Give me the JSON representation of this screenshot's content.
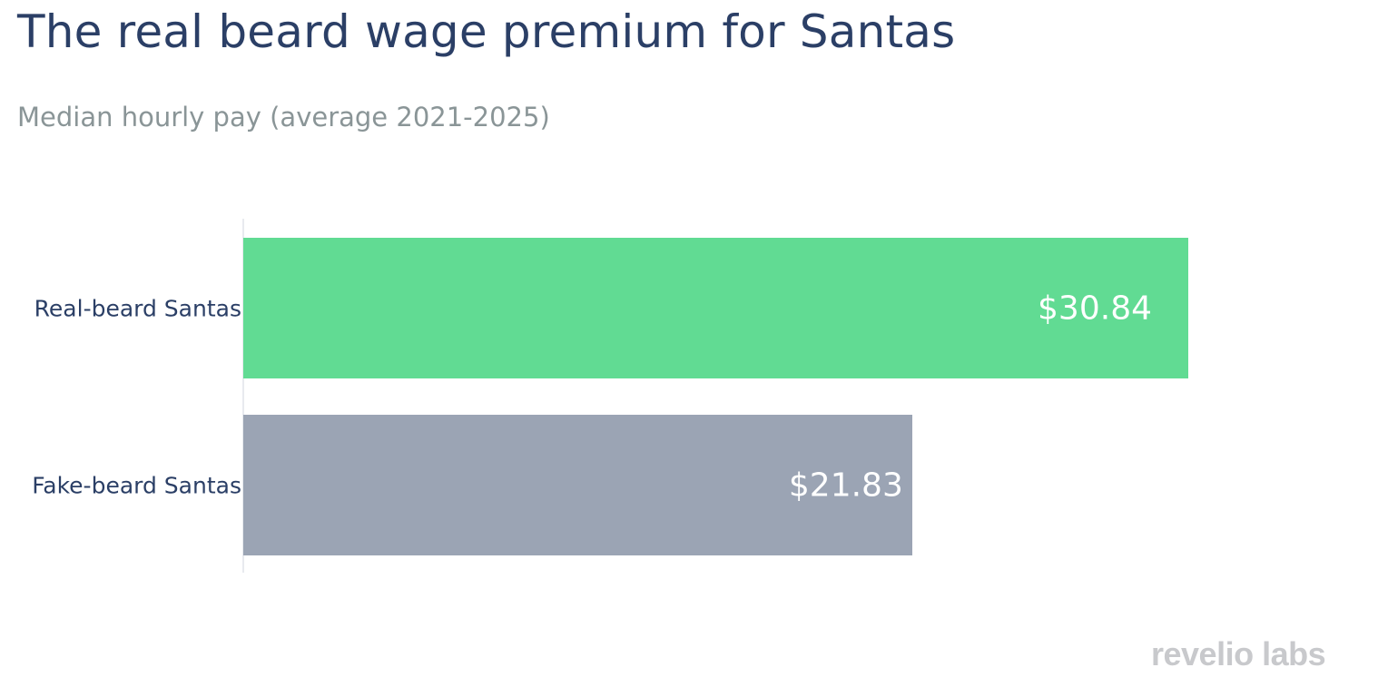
{
  "header": {
    "title": "The real beard wage premium for Santas",
    "subtitle": "Median hourly pay (average 2021-2025)"
  },
  "logo": {
    "text": "revelio labs"
  },
  "colors": {
    "real_beard": "#61db93",
    "fake_beard": "#9ba4b4",
    "title": "#2b3f66",
    "subtitle": "#8a9597"
  },
  "bars": [
    {
      "category": "Real-beard Santas",
      "value": 30.84,
      "label": "$30.84",
      "color": "#61db93"
    },
    {
      "category": "Fake-beard Santas",
      "value": 21.83,
      "label": "$21.83",
      "color": "#9ba4b4"
    }
  ],
  "chart_data": {
    "type": "bar",
    "orientation": "horizontal",
    "title": "The real beard wage premium for Santas",
    "subtitle": "Median hourly pay (average 2021-2025)",
    "categories": [
      "Real-beard Santas",
      "Fake-beard Santas"
    ],
    "values": [
      30.84,
      21.83
    ],
    "data_labels": [
      "$30.84",
      "$21.83"
    ],
    "xlabel": "",
    "ylabel": "",
    "units": "USD per hour",
    "grid": false,
    "legend": null,
    "xlim": [
      0,
      36
    ]
  }
}
